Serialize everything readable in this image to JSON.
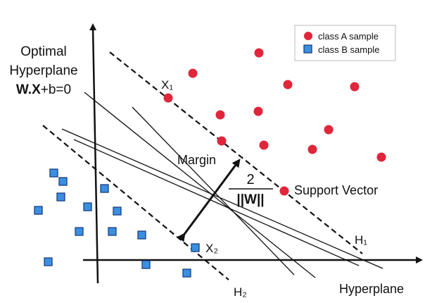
{
  "labels": {
    "optimal_line1": "Optimal",
    "optimal_line2": "Hyperplane",
    "equation_bold": "W.X",
    "equation_rest": "+b=0",
    "x1": "X₁",
    "x2": "X₂",
    "margin": "Margin",
    "fraction_numerator": "2",
    "fraction_denominator": "||W||",
    "support_vector": "Support Vector",
    "h1": "H₁",
    "h2": "H₂",
    "hyperplane": "Hyperplane"
  },
  "legend": {
    "class_a": "class A sample",
    "class_b": "class B sample"
  },
  "colors": {
    "class_a": "#e0263a",
    "class_b": "#3b8fe0",
    "class_b_border": "#1a3f80",
    "lines": "#111111"
  }
}
